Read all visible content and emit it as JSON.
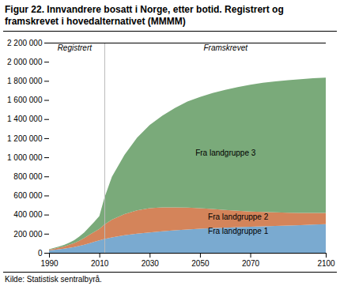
{
  "chart_data": {
    "type": "area",
    "stacked": true,
    "title": "Figur 22. Innvandrere bosatt i Norge, etter botid. Registrert og framskrevet i hovedalternativet (MMMM)",
    "source": "Kilde: Statistisk sentralbyrå.",
    "x": [
      1990,
      1992,
      1994,
      1996,
      1998,
      2000,
      2002,
      2004,
      2006,
      2008,
      2010,
      2012,
      2015,
      2020,
      2025,
      2030,
      2035,
      2040,
      2045,
      2050,
      2055,
      2060,
      2065,
      2070,
      2075,
      2080,
      2085,
      2090,
      2095,
      2100
    ],
    "series": [
      {
        "name": "Fra landgruppe 1",
        "color": "#7aaad0",
        "values": [
          25000,
          32000,
          38000,
          44000,
          52000,
          60000,
          72000,
          85000,
          100000,
          115000,
          130000,
          145000,
          162000,
          185000,
          200000,
          213000,
          225000,
          235000,
          245000,
          252000,
          258000,
          263000,
          268000,
          273000,
          278000,
          282000,
          286000,
          290000,
          295000,
          300000
        ]
      },
      {
        "name": "Fra landgruppe 2",
        "color": "#d4845a",
        "values": [
          8000,
          12000,
          17000,
          23000,
          32000,
          42000,
          55000,
          70000,
          88000,
          105000,
          120000,
          150000,
          185000,
          220000,
          245000,
          255000,
          250000,
          240000,
          228000,
          215000,
          200000,
          185000,
          172000,
          160000,
          150000,
          141000,
          134000,
          128000,
          123000,
          118000
        ]
      },
      {
        "name": "Fra landgruppe 3",
        "color": "#7aaa7a",
        "values": [
          5000,
          8000,
          12000,
          16000,
          22000,
          30000,
          42000,
          58000,
          80000,
          105000,
          135000,
          280000,
          450000,
          620000,
          760000,
          870000,
          960000,
          1040000,
          1110000,
          1165000,
          1215000,
          1258000,
          1295000,
          1327000,
          1352000,
          1372000,
          1387000,
          1400000,
          1410000,
          1415000
        ]
      }
    ],
    "vline": 2012,
    "annotations": [
      {
        "text": "Registrert",
        "x": 2000,
        "y": 2150000
      },
      {
        "text": "Framskrevet",
        "x": 2060,
        "y": 2150000
      },
      {
        "text": "Fra landgruppe 3",
        "x": 2060,
        "y": 1050000
      },
      {
        "text": "Fra landgruppe 2",
        "x": 2065,
        "y": 380000
      },
      {
        "text": "Fra landgruppe 1",
        "x": 2065,
        "y": 230000
      }
    ],
    "xlim": [
      1990,
      2100
    ],
    "xticks": [
      1990,
      2010,
      2030,
      2050,
      2070,
      2100
    ],
    "ylim": [
      0,
      2200000
    ],
    "yticks": [
      0,
      {
        "value": 200000,
        "label": "200 000"
      },
      {
        "value": 400000,
        "label": "400 000"
      },
      {
        "value": 600000,
        "label": "600 000"
      },
      {
        "value": 800000,
        "label": "800 000"
      },
      {
        "value": 1000000,
        "label": "1 000 000"
      },
      {
        "value": 1200000,
        "label": "1 200 000"
      },
      {
        "value": 1400000,
        "label": "1 400 000"
      },
      {
        "value": 1600000,
        "label": "1 600 000"
      },
      {
        "value": 1800000,
        "label": "1 800 000"
      },
      {
        "value": 2000000,
        "label": "2 000 000"
      },
      {
        "value": 2200000,
        "label": "2 200 000"
      }
    ],
    "grid": false
  }
}
